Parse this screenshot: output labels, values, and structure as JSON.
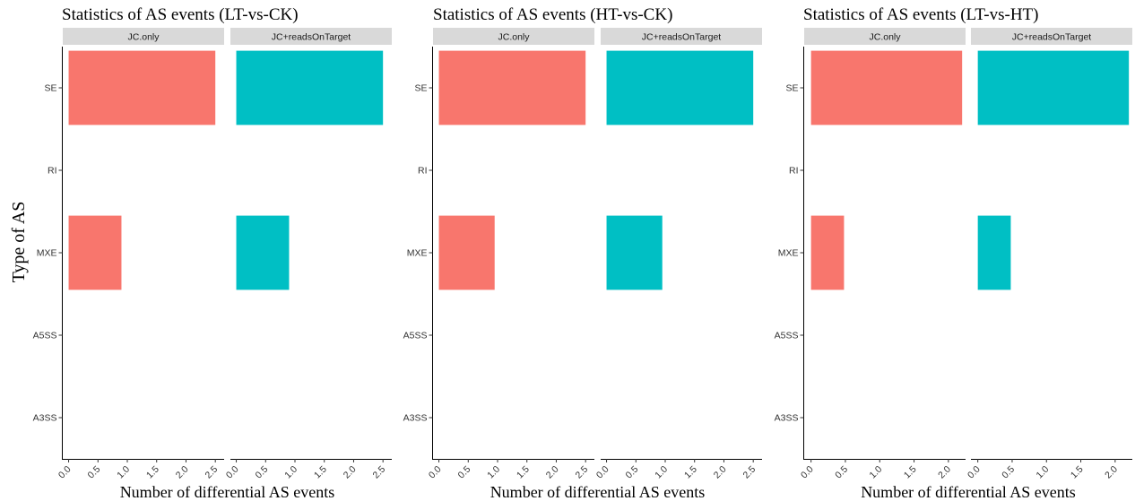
{
  "figure": {
    "ylabel": "Type of AS"
  },
  "chart_data": [
    {
      "type": "bar",
      "title": "Statistics of AS events (LT-vs-CK)",
      "xlabel": "Number of differential AS events",
      "ylabel": "Type of AS",
      "categories": [
        "SE",
        "RI",
        "MXE",
        "A5SS",
        "A3SS"
      ],
      "xlim": [
        -0.1,
        2.65
      ],
      "xticks": [
        "0.0",
        "0.5",
        "1.0",
        "1.5",
        "2.0",
        "2.5"
      ],
      "facets": [
        {
          "name": "JC.only",
          "color": "#F8766D",
          "values": [
            2.5,
            0,
            0.9,
            0,
            0
          ]
        },
        {
          "name": "JC+readsOnTarget",
          "color": "#00BFC4",
          "values": [
            2.5,
            0,
            0.9,
            0,
            0
          ]
        }
      ]
    },
    {
      "type": "bar",
      "title": "Statistics of AS events (HT-vs-CK)",
      "xlabel": "Number of differential AS events",
      "ylabel": "",
      "categories": [
        "SE",
        "RI",
        "MXE",
        "A5SS",
        "A3SS"
      ],
      "xlim": [
        -0.1,
        2.65
      ],
      "xticks": [
        "0.0",
        "0.5",
        "1.0",
        "1.5",
        "2.0",
        "2.5"
      ],
      "facets": [
        {
          "name": "JC.only",
          "color": "#F8766D",
          "values": [
            2.5,
            0,
            0.95,
            0,
            0
          ]
        },
        {
          "name": "JC+readsOnTarget",
          "color": "#00BFC4",
          "values": [
            2.5,
            0,
            0.95,
            0,
            0
          ]
        }
      ]
    },
    {
      "type": "bar",
      "title": "Statistics of AS events (LT-vs-HT)",
      "xlabel": "Number of differential AS events",
      "ylabel": "",
      "categories": [
        "SE",
        "RI",
        "MXE",
        "A5SS",
        "A3SS"
      ],
      "xlim": [
        -0.1,
        2.25
      ],
      "xticks": [
        "0.0",
        "0.5",
        "1.0",
        "1.5",
        "2.0"
      ],
      "facets": [
        {
          "name": "JC.only",
          "color": "#F8766D",
          "values": [
            2.2,
            0,
            0.48,
            0,
            0
          ]
        },
        {
          "name": "JC+readsOnTarget",
          "color": "#00BFC4",
          "values": [
            2.2,
            0,
            0.48,
            0,
            0
          ]
        }
      ]
    }
  ]
}
